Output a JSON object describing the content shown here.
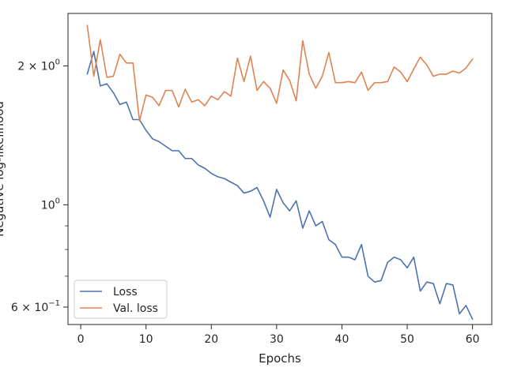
{
  "chart_data": {
    "type": "line",
    "xlabel": "Epochs",
    "ylabel": "Negative log-likelihood",
    "yscale": "log",
    "xlim": [
      -1.95,
      62.95
    ],
    "ylim": [
      0.55,
      2.6
    ],
    "xticks": [
      0,
      10,
      20,
      30,
      40,
      50,
      60
    ],
    "xtick_labels": [
      "0",
      "10",
      "20",
      "30",
      "40",
      "50",
      "60"
    ],
    "yticks": [
      0.6,
      1.0,
      2.0
    ],
    "ytick_labels": [
      {
        "base": "6 × 10",
        "exp": "−1"
      },
      {
        "base": "10",
        "exp": "0"
      },
      {
        "base": "2 × 10",
        "exp": "0"
      }
    ],
    "grid": false,
    "legend_position": "lower-left",
    "x": [
      1,
      2,
      3,
      4,
      5,
      6,
      7,
      8,
      9,
      10,
      11,
      12,
      13,
      14,
      15,
      16,
      17,
      18,
      19,
      20,
      21,
      22,
      23,
      24,
      25,
      26,
      27,
      28,
      29,
      30,
      31,
      32,
      33,
      34,
      35,
      36,
      37,
      38,
      39,
      40,
      41,
      42,
      43,
      44,
      45,
      46,
      47,
      48,
      49,
      50,
      51,
      52,
      53,
      54,
      55,
      56,
      57,
      58,
      59,
      60
    ],
    "series": [
      {
        "name": "Loss",
        "color": "#4c72b0",
        "values": [
          1.92,
          2.15,
          1.81,
          1.83,
          1.75,
          1.65,
          1.67,
          1.53,
          1.53,
          1.45,
          1.39,
          1.37,
          1.34,
          1.31,
          1.31,
          1.26,
          1.26,
          1.22,
          1.2,
          1.17,
          1.15,
          1.14,
          1.12,
          1.1,
          1.06,
          1.07,
          1.09,
          1.02,
          0.94,
          1.08,
          1.01,
          0.97,
          1.02,
          0.89,
          0.97,
          0.9,
          0.92,
          0.84,
          0.82,
          0.77,
          0.77,
          0.76,
          0.82,
          0.7,
          0.68,
          0.685,
          0.75,
          0.77,
          0.76,
          0.73,
          0.77,
          0.65,
          0.68,
          0.675,
          0.61,
          0.675,
          0.67,
          0.58,
          0.605,
          0.565
        ]
      },
      {
        "name": "Val. loss",
        "color": "#dd8452",
        "values": [
          2.45,
          1.9,
          2.28,
          1.89,
          1.9,
          2.12,
          2.03,
          2.03,
          1.52,
          1.73,
          1.71,
          1.64,
          1.77,
          1.77,
          1.63,
          1.78,
          1.67,
          1.69,
          1.64,
          1.72,
          1.69,
          1.76,
          1.72,
          2.08,
          1.85,
          2.1,
          1.77,
          1.85,
          1.79,
          1.66,
          1.96,
          1.86,
          1.68,
          2.27,
          1.92,
          1.79,
          1.9,
          2.14,
          1.84,
          1.84,
          1.85,
          1.84,
          1.94,
          1.77,
          1.84,
          1.84,
          1.85,
          1.99,
          1.94,
          1.85,
          1.97,
          2.09,
          2.01,
          1.9,
          1.92,
          1.92,
          1.95,
          1.93,
          1.98,
          2.07
        ]
      }
    ]
  }
}
